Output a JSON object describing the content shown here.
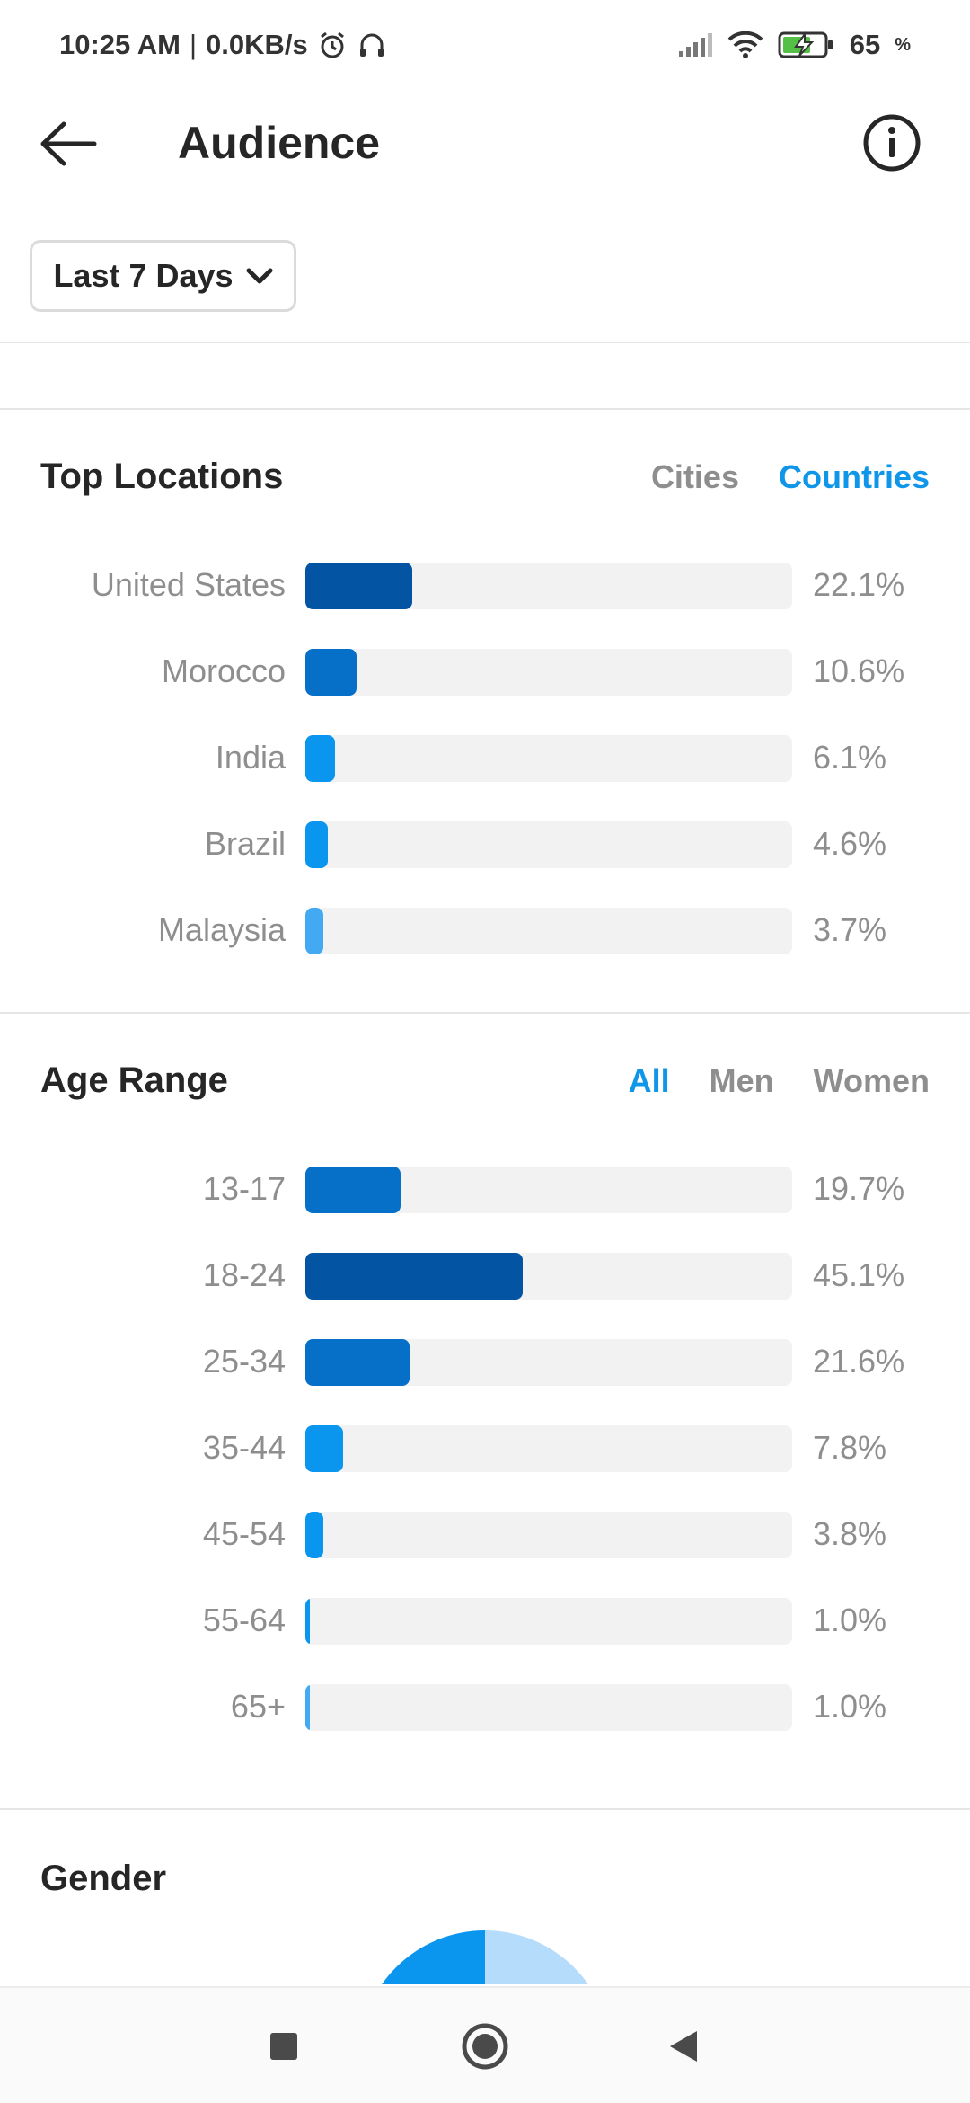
{
  "status_bar": {
    "time": "10:25 AM",
    "separator": "|",
    "speed": "0.0KB/s",
    "battery_level": "65",
    "battery_unit": "%"
  },
  "header": {
    "title": "Audience",
    "back_icon": "arrow-left-icon",
    "info_icon": "info-circle-icon"
  },
  "range_dropdown": {
    "label": "Last 7 Days",
    "icon": "chevron-down-icon"
  },
  "colors": {
    "accent": "#0f96e8",
    "bar_track": "#f2f2f2",
    "shade_darkest": "#0355a3",
    "shade_dark": "#0670c9",
    "shade_mid": "#0a95ee",
    "shade_light": "#42a9f2"
  },
  "top_locations": {
    "title": "Top Locations",
    "tabs": [
      {
        "label": "Cities",
        "active": false
      },
      {
        "label": "Countries",
        "active": true
      }
    ],
    "items": [
      {
        "label": "United States",
        "value": 22.1,
        "display": "22.1%",
        "color": "#0355a3"
      },
      {
        "label": "Morocco",
        "value": 10.6,
        "display": "10.6%",
        "color": "#0670c9"
      },
      {
        "label": "India",
        "value": 6.1,
        "display": "6.1%",
        "color": "#0a95ee"
      },
      {
        "label": "Brazil",
        "value": 4.6,
        "display": "4.6%",
        "color": "#0a95ee"
      },
      {
        "label": "Malaysia",
        "value": 3.7,
        "display": "3.7%",
        "color": "#42a9f2"
      }
    ]
  },
  "age_range": {
    "title": "Age Range",
    "tabs": [
      {
        "label": "All",
        "active": true
      },
      {
        "label": "Men",
        "active": false
      },
      {
        "label": "Women",
        "active": false
      }
    ],
    "items": [
      {
        "label": "13-17",
        "value": 19.7,
        "display": "19.7%",
        "color": "#0670c9"
      },
      {
        "label": "18-24",
        "value": 45.1,
        "display": "45.1%",
        "color": "#0355a3"
      },
      {
        "label": "25-34",
        "value": 21.6,
        "display": "21.6%",
        "color": "#0670c9"
      },
      {
        "label": "35-44",
        "value": 7.8,
        "display": "7.8%",
        "color": "#0a95ee"
      },
      {
        "label": "45-54",
        "value": 3.8,
        "display": "3.8%",
        "color": "#0a95ee"
      },
      {
        "label": "55-64",
        "value": 1.0,
        "display": "1.0%",
        "color": "#0a95ee"
      },
      {
        "label": "65+",
        "value": 1.0,
        "display": "1.0%",
        "color": "#42a9f2"
      }
    ]
  },
  "gender": {
    "title": "Gender",
    "colors": [
      "#0a95ee",
      "#b5dcfb"
    ]
  },
  "nav_bar": {
    "recents_icon": "square-recents-icon",
    "home_icon": "circle-home-icon",
    "back_icon": "triangle-back-icon"
  }
}
